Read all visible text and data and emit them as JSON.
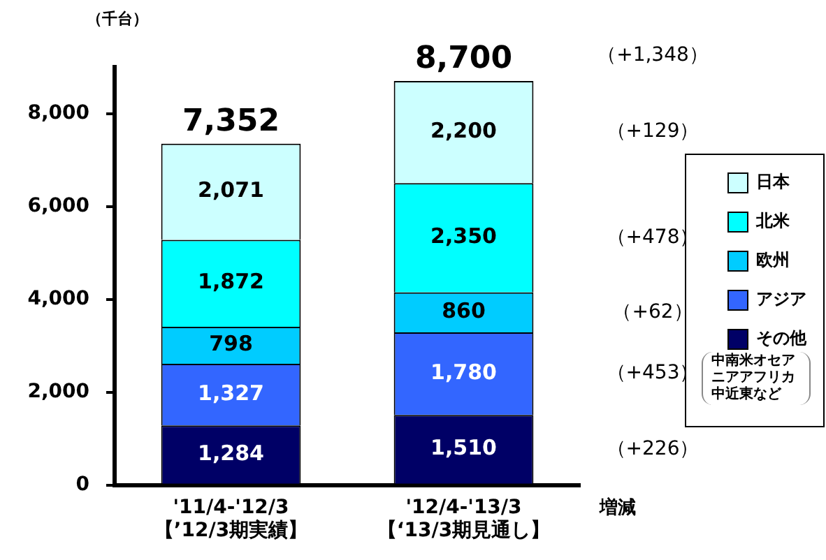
{
  "chart_data": {
    "type": "bar",
    "stacked": true,
    "ylabel": "（千台）",
    "categories": [
      "'11/4-'12/3\n【’12/3期実績】",
      "'12/4-'13/3\n【‘13/3期見通し】"
    ],
    "series": [
      {
        "name": "その他",
        "color": "#000066",
        "values": [
          1284,
          1510
        ],
        "value_labels": [
          "1,284",
          "1,510"
        ]
      },
      {
        "name": "アジア",
        "color": "#3366ff",
        "values": [
          1327,
          1780
        ],
        "value_labels": [
          "1,327",
          "1,780"
        ]
      },
      {
        "name": "欧州",
        "color": "#00ccff",
        "values": [
          798,
          860
        ],
        "value_labels": [
          "798",
          "860"
        ]
      },
      {
        "name": "北米",
        "color": "#00ffff",
        "values": [
          1872,
          2350
        ],
        "value_labels": [
          "1,872",
          "2,350"
        ]
      },
      {
        "name": "日本",
        "color": "#ccffff",
        "values": [
          2071,
          2200
        ],
        "value_labels": [
          "2,071",
          "2,200"
        ]
      }
    ],
    "totals": [
      "7,352",
      "8,700"
    ],
    "ylim": [
      0,
      9000
    ],
    "yticks": [
      {
        "value": 0,
        "label": "0"
      },
      {
        "value": 2000,
        "label": "2,000"
      },
      {
        "value": 4000,
        "label": "4,000"
      },
      {
        "value": 6000,
        "label": "6,000"
      },
      {
        "value": 8000,
        "label": "8,000"
      }
    ],
    "grid": false,
    "legend": "right",
    "annotations": [
      "（+1,348）",
      "（+129）",
      "（+478）",
      "（+62）",
      "（+453）",
      "（+226）",
      "増減",
      "中南米オセアニアアフリカ中近東など"
    ]
  }
}
